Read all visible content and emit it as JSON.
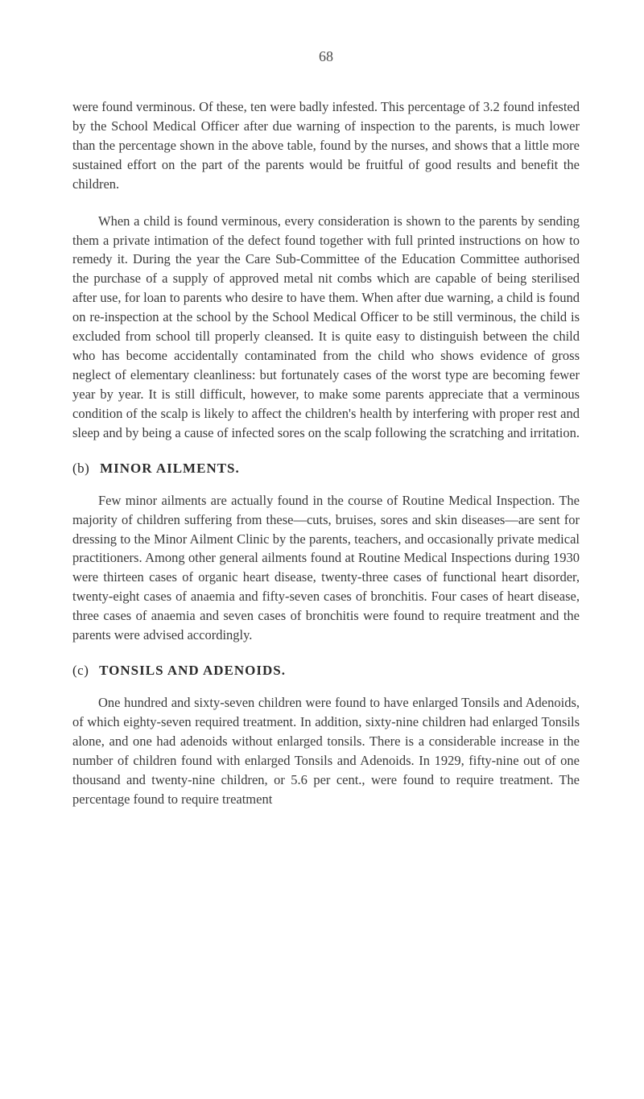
{
  "pageNumber": "68",
  "paragraphs": {
    "p1": "were found verminous. Of these, ten were badly infested. This percentage of 3.2 found infested by the School Medical Officer after due warning of inspection to the parents, is much lower than the percentage shown in the above table, found by the nurses, and shows that a little more sustained effort on the part of the parents would be fruitful of good results and benefit the children.",
    "p2": "When a child is found verminous, every consideration is shown to the parents by sending them a private intimation of the defect found together with full printed instructions on how to remedy it. During the year the Care Sub-Committee of the Education Committee authorised the purchase of a supply of approved metal nit combs which are capable of being sterilised after use, for loan to parents who desire to have them. When after due warning, a child is found on re-inspection at the school by the School Medical Officer to be still verminous, the child is excluded from school till properly cleansed. It is quite easy to distinguish between the child who has become accidentally contaminated from the child who shows evidence of gross neglect of elementary cleanliness: but fortunately cases of the worst type are becoming fewer year by year. It is still difficult, however, to make some parents appreciate that a verminous condition of the scalp is likely to affect the children's health by interfering with proper rest and sleep and by being a cause of infected sores on the scalp following the scratching and irritation.",
    "p3": "Few minor ailments are actually found in the course of Routine Medical Inspection. The majority of children suffering from these—cuts, bruises, sores and skin diseases—are sent for dressing to the Minor Ailment Clinic by the parents, teachers, and occasionally private medical practitioners. Among other general ailments found at Routine Medical Inspections during 1930 were thirteen cases of organic heart disease, twenty-three cases of functional heart disorder, twenty-eight cases of anaemia and fifty-seven cases of bronchitis. Four cases of heart disease, three cases of anaemia and seven cases of bronchitis were found to require treatment and the parents were advised accordingly.",
    "p4": "One hundred and sixty-seven children were found to have enlarged Tonsils and Adenoids, of which eighty-seven required treatment. In addition, sixty-nine children had enlarged Tonsils alone, and one had adenoids without enlarged tonsils. There is a considerable increase in the number of children found with enlarged Tonsils and Adenoids. In 1929, fifty-nine out of one thousand and twenty-nine children, or 5.6 per cent., were found to require treatment. The percentage found to require treatment"
  },
  "headings": {
    "sectionB": {
      "letter": "(b)",
      "title": "MINOR AILMENTS."
    },
    "sectionC": {
      "letter": "(c)",
      "title": "TONSILS AND ADENOIDS."
    }
  }
}
